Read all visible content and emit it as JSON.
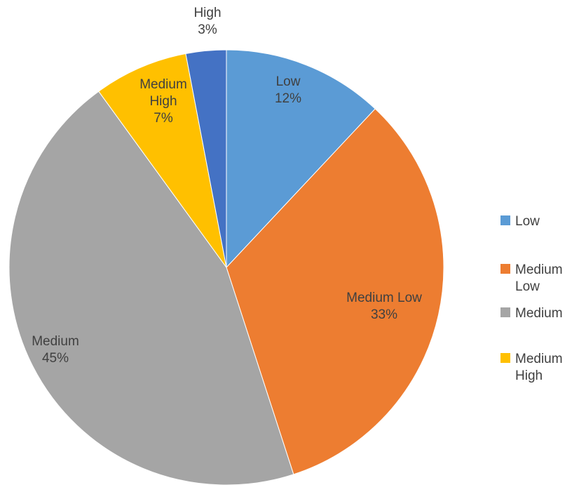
{
  "chart_data": {
    "type": "pie",
    "title": "",
    "start_angle_deg": 0,
    "direction": "clockwise",
    "slices": [
      {
        "name": "Low",
        "value": 12,
        "label_lines": [
          "Low",
          "12%"
        ],
        "color": "#5B9BD5"
      },
      {
        "name": "Medium Low",
        "value": 33,
        "label_lines": [
          "Medium Low",
          "33%"
        ],
        "color": "#ED7D31"
      },
      {
        "name": "Medium",
        "value": 45,
        "label_lines": [
          "Medium",
          "45%"
        ],
        "color": "#A5A5A5"
      },
      {
        "name": "Medium High",
        "value": 7,
        "label_lines": [
          "Medium",
          "High",
          "7%"
        ],
        "color": "#FFC000"
      },
      {
        "name": "High",
        "value": 3,
        "label_lines": [
          "High",
          "3%"
        ],
        "color": "#4472C4"
      }
    ],
    "legend": {
      "placement": "right",
      "entries": [
        {
          "lines": [
            "Low"
          ],
          "color": "#5B9BD5"
        },
        {
          "lines": [
            "Medium",
            "Low"
          ],
          "color": "#ED7D31"
        },
        {
          "lines": [
            "Medium"
          ],
          "color": "#A5A5A5"
        },
        {
          "lines": [
            "Medium",
            "High"
          ],
          "color": "#FFC000"
        }
      ]
    }
  }
}
